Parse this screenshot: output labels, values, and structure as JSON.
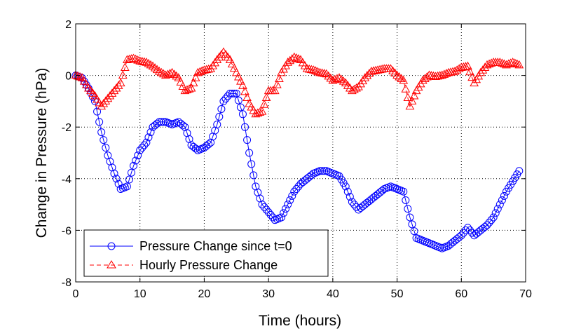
{
  "chart_data": {
    "type": "line",
    "title": "",
    "xlabel": "Time (hours)",
    "ylabel": "Change in Pressure (hPa)",
    "xlim": [
      0,
      70
    ],
    "ylim": [
      -8,
      2
    ],
    "xticks": [
      "0",
      "10",
      "20",
      "30",
      "40",
      "50",
      "60",
      "70"
    ],
    "yticks": [
      "2",
      "0",
      "-2",
      "-4",
      "-6",
      "-8"
    ],
    "xtick_values": [
      0,
      10,
      20,
      30,
      40,
      50,
      60,
      70
    ],
    "ytick_values": [
      2,
      0,
      -2,
      -4,
      -6,
      -8
    ],
    "grid": true,
    "legend_position": "bottom-left",
    "series": [
      {
        "name": "Pressure Change since t=0",
        "color": "#0000ff",
        "marker": "circle",
        "line_style": "solid",
        "x_anchor": [
          0,
          1,
          2,
          3,
          4,
          5,
          6,
          7,
          8,
          9,
          10,
          11,
          12,
          13,
          14,
          15,
          16,
          17,
          18,
          19,
          20,
          21,
          22,
          23,
          24,
          25,
          26,
          27,
          28,
          29,
          30,
          31,
          32,
          33,
          34,
          35,
          36,
          37,
          38,
          39,
          40,
          41,
          42,
          43,
          44,
          45,
          46,
          47,
          48,
          49,
          50,
          51,
          52,
          53,
          54,
          55,
          56,
          57,
          58,
          59,
          60,
          61,
          62,
          63,
          64,
          65,
          66,
          67,
          68,
          69
        ],
        "y_anchor": [
          0,
          -0.1,
          -0.5,
          -1.0,
          -2.2,
          -3.1,
          -3.8,
          -4.4,
          -4.3,
          -3.5,
          -2.9,
          -2.6,
          -2.0,
          -1.8,
          -1.8,
          -1.9,
          -1.8,
          -2.0,
          -2.7,
          -2.9,
          -2.8,
          -2.6,
          -1.9,
          -1.0,
          -0.7,
          -0.7,
          -1.5,
          -3.0,
          -4.3,
          -5.0,
          -5.3,
          -5.6,
          -5.5,
          -5.0,
          -4.5,
          -4.2,
          -4.0,
          -3.8,
          -3.7,
          -3.7,
          -3.8,
          -3.9,
          -4.3,
          -4.9,
          -5.2,
          -5.0,
          -4.8,
          -4.6,
          -4.4,
          -4.3,
          -4.4,
          -4.5,
          -5.5,
          -6.3,
          -6.4,
          -6.5,
          -6.6,
          -6.7,
          -6.6,
          -6.4,
          -6.2,
          -5.9,
          -6.2,
          -6.0,
          -5.8,
          -5.5,
          -5.0,
          -4.5,
          -4.1,
          -3.7
        ],
        "points_per_hour": 3
      },
      {
        "name": "Hourly Pressure Change",
        "color": "#ff0000",
        "marker": "triangle",
        "line_style": "dashed",
        "x_anchor": [
          0,
          1,
          2,
          3,
          4,
          5,
          6,
          7,
          8,
          9,
          10,
          11,
          12,
          13,
          14,
          15,
          16,
          17,
          18,
          19,
          20,
          21,
          22,
          23,
          24,
          25,
          26,
          27,
          28,
          29,
          30,
          31,
          32,
          33,
          34,
          35,
          36,
          37,
          38,
          39,
          40,
          41,
          42,
          43,
          44,
          45,
          46,
          47,
          48,
          49,
          50,
          51,
          52,
          53,
          54,
          55,
          56,
          57,
          58,
          59,
          60,
          61,
          62,
          63,
          64,
          65,
          66,
          67,
          68,
          69
        ],
        "y_anchor": [
          0,
          -0.1,
          -0.5,
          -0.8,
          -1.2,
          -0.9,
          -0.6,
          -0.3,
          0.6,
          0.65,
          0.55,
          0.5,
          0.35,
          0.15,
          0.0,
          0.1,
          -0.1,
          -0.6,
          -0.5,
          0.1,
          0.2,
          0.25,
          0.6,
          0.9,
          0.6,
          0.1,
          -0.4,
          -1.1,
          -1.5,
          -1.4,
          -0.6,
          -0.6,
          0.1,
          0.5,
          0.7,
          0.6,
          0.25,
          0.2,
          0.1,
          0.05,
          -0.2,
          -0.1,
          -0.3,
          -0.6,
          -0.45,
          -0.1,
          0.15,
          0.2,
          0.25,
          0.25,
          0.0,
          -0.2,
          -1.2,
          -0.6,
          -0.2,
          0.0,
          -0.05,
          0.0,
          0.1,
          0.15,
          0.3,
          0.35,
          -0.3,
          0.1,
          0.4,
          0.5,
          0.5,
          0.4,
          0.5,
          0.4
        ],
        "points_per_hour": 3
      }
    ]
  }
}
